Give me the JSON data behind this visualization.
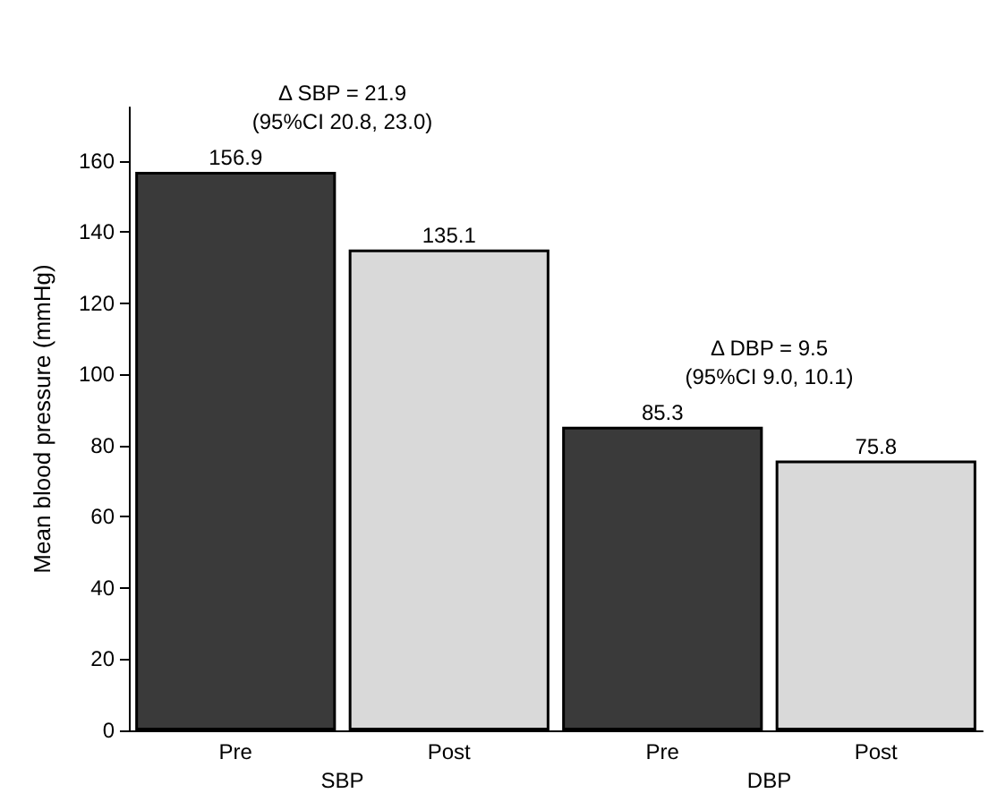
{
  "chart_data": {
    "type": "bar",
    "ylabel": "Mean blood pressure (mmHg)",
    "categories": [
      "Pre",
      "Post",
      "Pre",
      "Post"
    ],
    "values": [
      156.9,
      135.1,
      85.3,
      75.8
    ],
    "colors": [
      "#3a3a3a",
      "#d9d9d9",
      "#3a3a3a",
      "#d9d9d9"
    ],
    "data_labels": true,
    "ylim": [
      0,
      175
    ],
    "yticks": [
      0,
      20,
      40,
      60,
      80,
      100,
      120,
      140,
      160
    ],
    "grid": false,
    "annotations": [
      "Δ SBP = 21.9\n(95%CI 20.8, 23.0)",
      "Δ DBP = 9.5\n(95%CI 9.0, 10.1)",
      "SBP",
      "DBP"
    ]
  }
}
